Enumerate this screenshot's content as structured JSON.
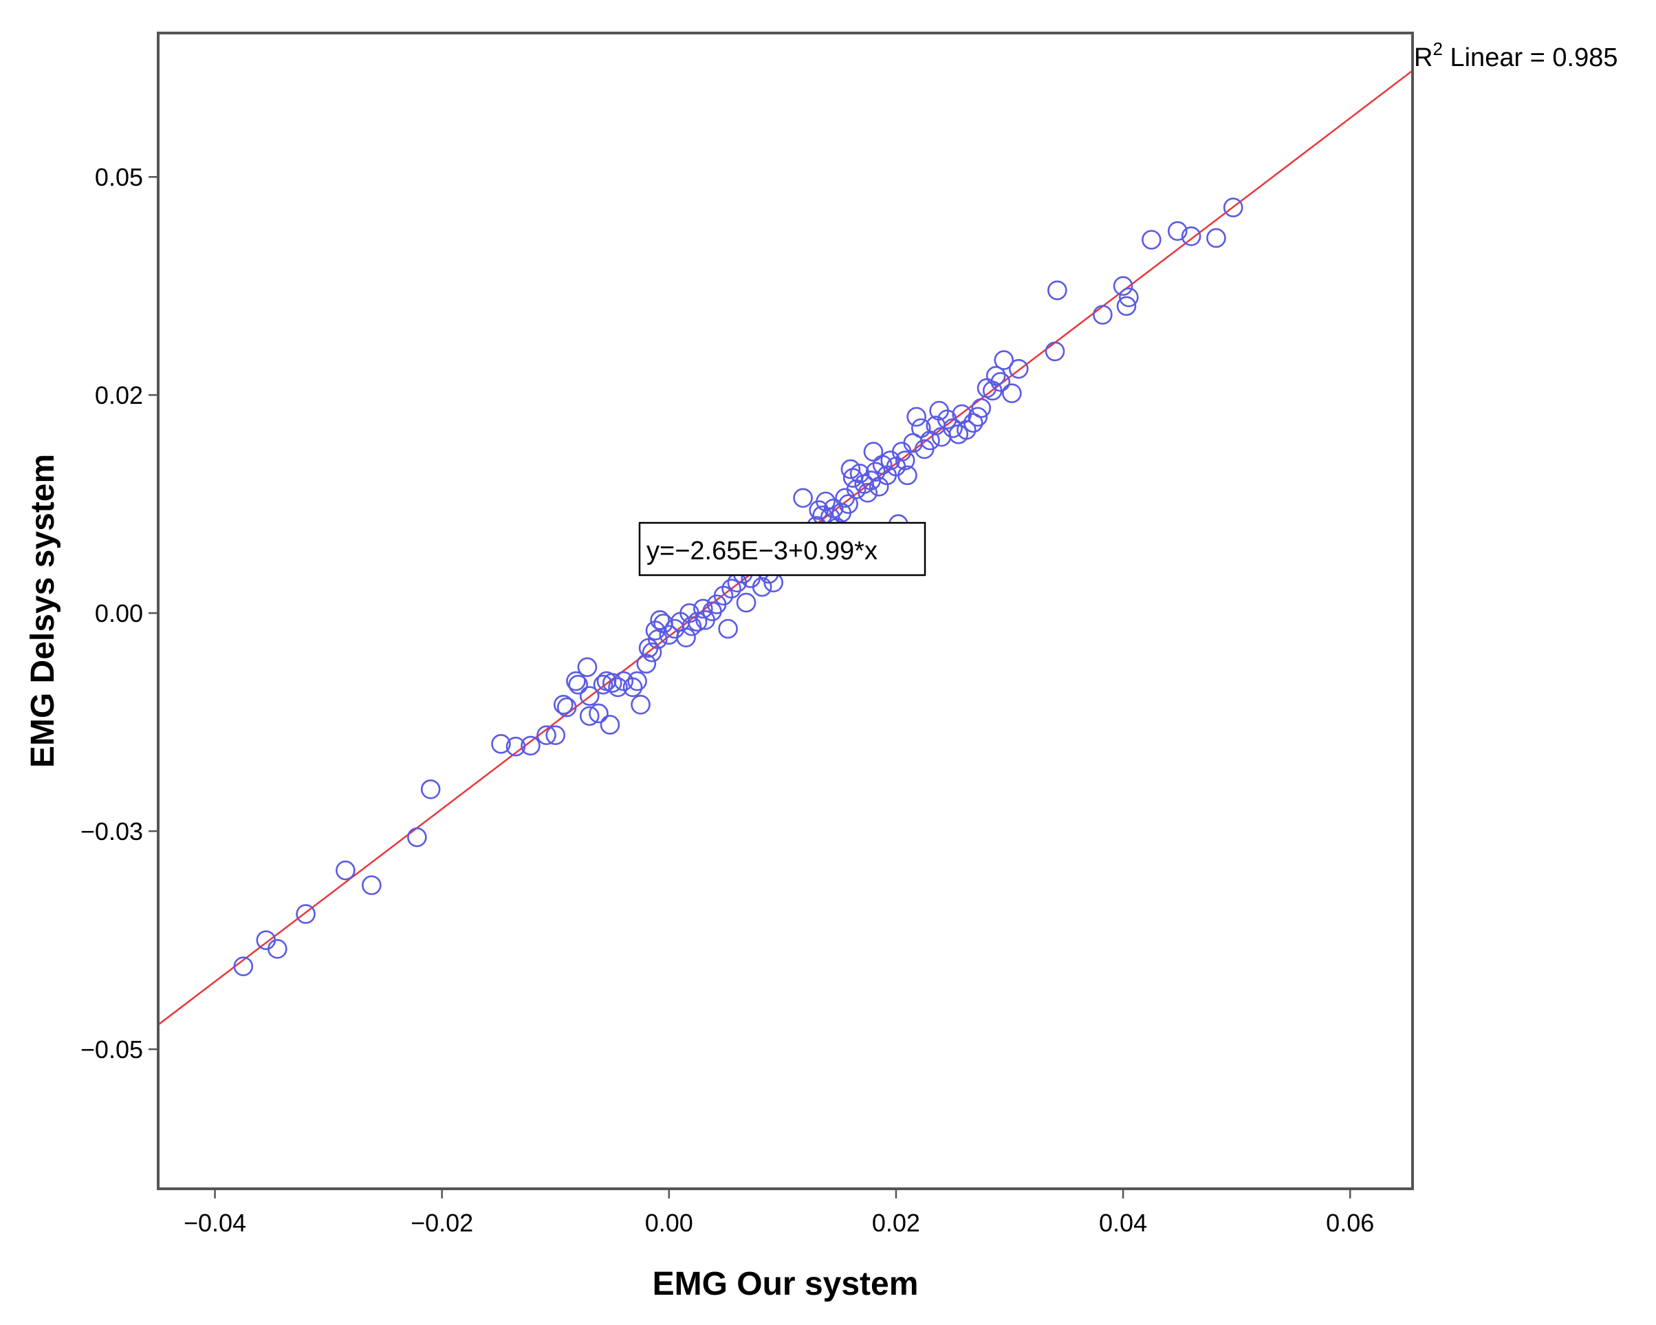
{
  "chart_data": {
    "type": "scatter",
    "xlabel": "EMG Our system",
    "ylabel": "EMG Delsys system",
    "xlim": [
      -0.045,
      0.0655
    ],
    "ylim": [
      -0.066,
      0.0665
    ],
    "xticks": [
      -0.04,
      -0.02,
      0.0,
      0.02,
      0.04,
      0.06
    ],
    "xtick_labels": [
      "−0.04",
      "−0.02",
      "0.00",
      "0.02",
      "0.04",
      "0.06"
    ],
    "yticks": [
      -0.05,
      -0.025,
      0.0,
      0.025,
      0.05
    ],
    "ytick_labels": [
      "−0.05",
      "−0.03",
      "0.00",
      "0.02",
      "0.05"
    ],
    "grid": false,
    "marker_color": "#5a5ae6",
    "fit_line_color": "#e8373c",
    "fit": {
      "intercept": -0.00265,
      "slope": 0.99,
      "equation_label": "y=−2.65E−3+0.99*x",
      "r2_prefix": "R",
      "r2_sup": "2",
      "r2_suffix": " Linear = 0.985"
    },
    "points": [
      [
        -0.0375,
        -0.0405
      ],
      [
        -0.0355,
        -0.0375
      ],
      [
        -0.0345,
        -0.0385
      ],
      [
        -0.032,
        -0.0345
      ],
      [
        -0.0285,
        -0.0295
      ],
      [
        -0.0262,
        -0.0312
      ],
      [
        -0.0222,
        -0.0257
      ],
      [
        -0.021,
        -0.0202
      ],
      [
        -0.0148,
        -0.015
      ],
      [
        -0.0135,
        -0.0153
      ],
      [
        -0.0122,
        -0.0152
      ],
      [
        -0.0108,
        -0.014
      ],
      [
        -0.01,
        -0.014
      ],
      [
        -0.0093,
        -0.0105
      ],
      [
        -0.009,
        -0.0108
      ],
      [
        -0.0082,
        -0.0078
      ],
      [
        -0.008,
        -0.0082
      ],
      [
        -0.0072,
        -0.0062
      ],
      [
        -0.007,
        -0.0095
      ],
      [
        -0.007,
        -0.0118
      ],
      [
        -0.0062,
        -0.0115
      ],
      [
        -0.0058,
        -0.0082
      ],
      [
        -0.0055,
        -0.0078
      ],
      [
        -0.0052,
        -0.0128
      ],
      [
        -0.005,
        -0.008
      ],
      [
        -0.0045,
        -0.0085
      ],
      [
        -0.004,
        -0.0078
      ],
      [
        -0.0032,
        -0.0085
      ],
      [
        -0.0028,
        -0.0078
      ],
      [
        -0.0025,
        -0.0105
      ],
      [
        -0.002,
        -0.0058
      ],
      [
        -0.0018,
        -0.004
      ],
      [
        -0.0015,
        -0.0045
      ],
      [
        -0.0012,
        -0.002
      ],
      [
        -0.001,
        -0.003
      ],
      [
        -0.0008,
        -0.0008
      ],
      [
        -0.0005,
        -0.0012
      ],
      [
        0.0,
        -0.0025
      ],
      [
        0.0005,
        -0.0018
      ],
      [
        0.001,
        -0.001
      ],
      [
        0.0015,
        -0.0028
      ],
      [
        0.0018,
        0.0
      ],
      [
        0.002,
        -0.0015
      ],
      [
        0.0025,
        -0.001
      ],
      [
        0.003,
        0.0005
      ],
      [
        0.0032,
        -0.0008
      ],
      [
        0.0038,
        0.0002
      ],
      [
        0.0042,
        0.001
      ],
      [
        0.0048,
        0.002
      ],
      [
        0.0052,
        -0.0018
      ],
      [
        0.0055,
        0.0028
      ],
      [
        0.006,
        0.0035
      ],
      [
        0.0065,
        0.0045
      ],
      [
        0.0068,
        0.0012
      ],
      [
        0.0072,
        0.004
      ],
      [
        0.0078,
        0.0055
      ],
      [
        0.0082,
        0.003
      ],
      [
        0.0088,
        0.0045
      ],
      [
        0.0092,
        0.0035
      ],
      [
        0.0098,
        0.0062
      ],
      [
        0.0102,
        0.0072
      ],
      [
        0.0105,
        0.0055
      ],
      [
        0.011,
        0.0058
      ],
      [
        0.0113,
        0.0083
      ],
      [
        0.0118,
        0.008
      ],
      [
        0.0118,
        0.0132
      ],
      [
        0.0122,
        0.0092
      ],
      [
        0.0125,
        0.0085
      ],
      [
        0.013,
        0.01
      ],
      [
        0.0132,
        0.0118
      ],
      [
        0.0135,
        0.0112
      ],
      [
        0.0138,
        0.0128
      ],
      [
        0.0142,
        0.011
      ],
      [
        0.0145,
        0.012
      ],
      [
        0.0148,
        0.0098
      ],
      [
        0.0152,
        0.0115
      ],
      [
        0.0155,
        0.0132
      ],
      [
        0.0158,
        0.0125
      ],
      [
        0.016,
        0.0165
      ],
      [
        0.0162,
        0.0155
      ],
      [
        0.0165,
        0.0142
      ],
      [
        0.0168,
        0.016
      ],
      [
        0.0172,
        0.0148
      ],
      [
        0.0175,
        0.0138
      ],
      [
        0.0178,
        0.0152
      ],
      [
        0.018,
        0.0185
      ],
      [
        0.0182,
        0.0162
      ],
      [
        0.0185,
        0.0145
      ],
      [
        0.0188,
        0.017
      ],
      [
        0.0192,
        0.0158
      ],
      [
        0.0195,
        0.0175
      ],
      [
        0.02,
        0.0168
      ],
      [
        0.0202,
        0.0102
      ],
      [
        0.0205,
        0.0185
      ],
      [
        0.0208,
        0.0175
      ],
      [
        0.021,
        0.0158
      ],
      [
        0.0215,
        0.0195
      ],
      [
        0.0218,
        0.0225
      ],
      [
        0.0222,
        0.0212
      ],
      [
        0.0225,
        0.0188
      ],
      [
        0.023,
        0.0198
      ],
      [
        0.0235,
        0.0215
      ],
      [
        0.0238,
        0.0232
      ],
      [
        0.024,
        0.0202
      ],
      [
        0.0245,
        0.0222
      ],
      [
        0.025,
        0.0212
      ],
      [
        0.0255,
        0.0205
      ],
      [
        0.0258,
        0.0228
      ],
      [
        0.0262,
        0.021
      ],
      [
        0.0268,
        0.0218
      ],
      [
        0.0272,
        0.0225
      ],
      [
        0.0275,
        0.0235
      ],
      [
        0.028,
        0.0258
      ],
      [
        0.0285,
        0.0255
      ],
      [
        0.0288,
        0.0272
      ],
      [
        0.0292,
        0.0265
      ],
      [
        0.0295,
        0.029
      ],
      [
        0.0302,
        0.0252
      ],
      [
        0.0308,
        0.028
      ],
      [
        0.034,
        0.03
      ],
      [
        0.0342,
        0.037
      ],
      [
        0.0382,
        0.0342
      ],
      [
        0.04,
        0.0375
      ],
      [
        0.0403,
        0.0352
      ],
      [
        0.0405,
        0.0362
      ],
      [
        0.0425,
        0.0428
      ],
      [
        0.0448,
        0.0438
      ],
      [
        0.046,
        0.0432
      ],
      [
        0.0482,
        0.043
      ],
      [
        0.0497,
        0.0465
      ]
    ]
  }
}
